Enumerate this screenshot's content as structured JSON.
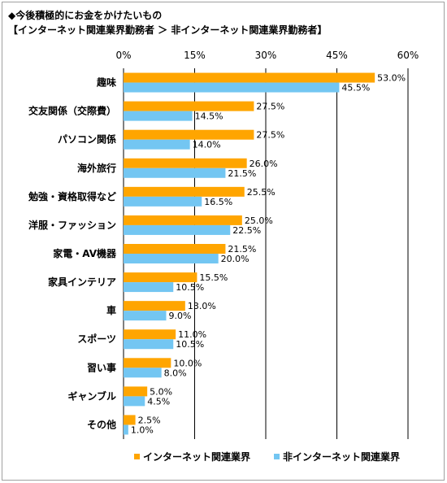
{
  "titles": {
    "line1": "◆今後積極的にお金をかけたいもの",
    "line2": "【インターネット関連業界勤務者 ＞ 非インターネット関連業界勤務者】"
  },
  "chart_data": {
    "type": "bar",
    "orientation": "horizontal",
    "categories": [
      "趣味",
      "交友関係（交際費）",
      "パソコン関係",
      "海外旅行",
      "勉強・資格取得など",
      "洋服・ファッション",
      "家電・AV機器",
      "家具インテリア",
      "車",
      "スポーツ",
      "習い事",
      "ギャンブル",
      "その他"
    ],
    "series": [
      {
        "name": "インターネット関連業界",
        "values": [
          53.0,
          27.5,
          27.5,
          26.0,
          25.5,
          25.0,
          21.5,
          15.5,
          13.0,
          11.0,
          10.0,
          5.0,
          2.5
        ],
        "color": "#FFA500"
      },
      {
        "name": "非インターネット関連業界",
        "values": [
          45.5,
          14.5,
          14.0,
          21.5,
          16.5,
          22.5,
          20.0,
          10.5,
          9.0,
          10.5,
          8.0,
          4.5,
          1.0
        ],
        "color": "#73C6F2"
      }
    ],
    "xlim": [
      0,
      60
    ],
    "xticks": [
      0,
      15,
      30,
      45,
      60
    ],
    "tick_suffix": "%",
    "value_suffix": "%",
    "grid": true,
    "legend_position": "bottom"
  }
}
